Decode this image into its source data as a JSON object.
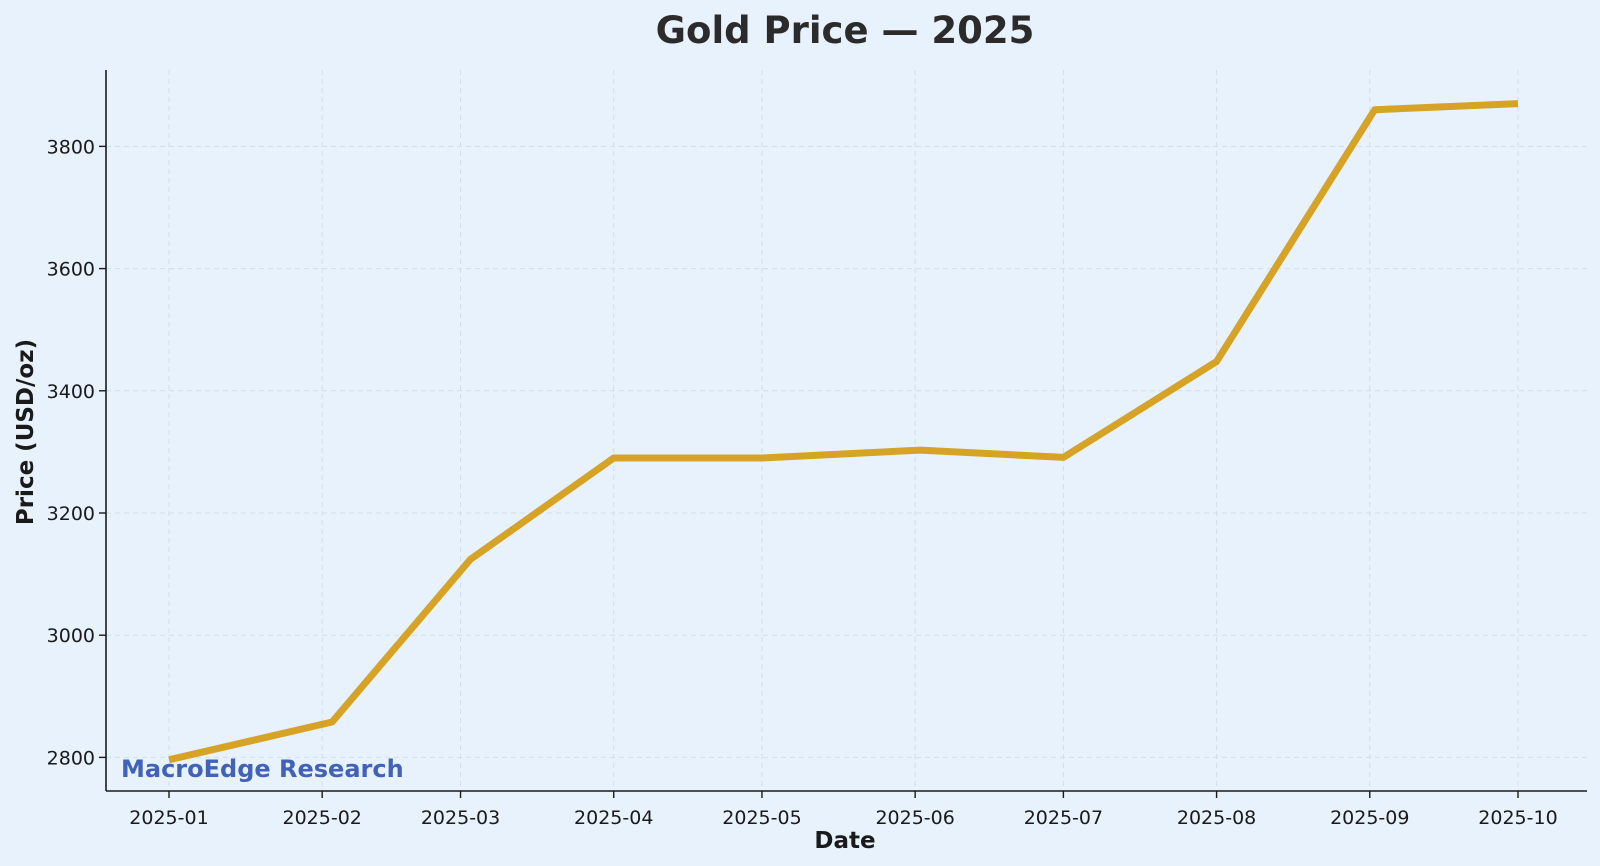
{
  "chart_data": {
    "type": "line",
    "title": "Gold Price — 2025",
    "xlabel": "Date",
    "ylabel": "Price (USD/oz)",
    "x": [
      "2025-01-01",
      "2025-02-03",
      "2025-03-03",
      "2025-04-01",
      "2025-05-01",
      "2025-06-02",
      "2025-07-01",
      "2025-08-01",
      "2025-09-02",
      "2025-10-01"
    ],
    "x_ticks": [
      "2025-01",
      "2025-02",
      "2025-03",
      "2025-04",
      "2025-05",
      "2025-06",
      "2025-07",
      "2025-08",
      "2025-09",
      "2025-10"
    ],
    "y_ticks": [
      2800,
      3000,
      3200,
      3400,
      3600,
      3800
    ],
    "series": [
      {
        "values": [
          2796,
          2858,
          3124,
          3290,
          3290,
          3303,
          3291,
          3448,
          3860,
          3870
        ],
        "color": "#d6a327"
      }
    ],
    "ylim": [
      2745,
      3925
    ],
    "grid": true,
    "legend": "none",
    "watermark": "MacroEdge Research",
    "watermark_color": "#4262b8"
  }
}
